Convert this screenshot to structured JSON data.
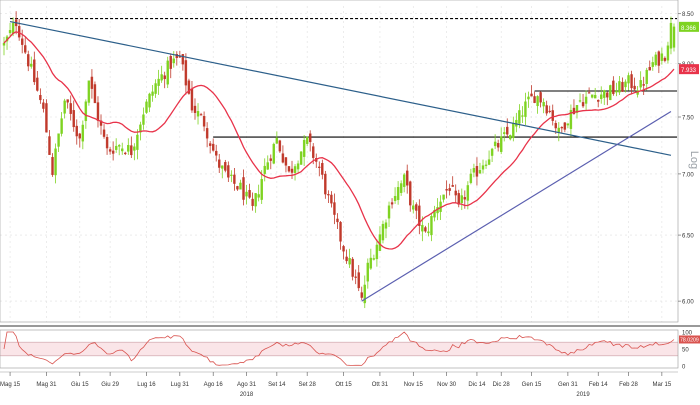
{
  "chart_data": {
    "type": "candlestick",
    "scale": "log",
    "ylim": [
      5.85,
      8.58
    ],
    "y_ticks": [
      6.0,
      6.5,
      7.0,
      7.5,
      8.0,
      8.5
    ],
    "y_tick_labels": [
      "6.00",
      "6.50",
      "7.00",
      "7.50",
      "8.00",
      "8.50"
    ],
    "x_ticks": [
      {
        "label": "Mag 15",
        "idx": 2
      },
      {
        "label": "Mag 31",
        "idx": 14
      },
      {
        "label": "Giu 15",
        "idx": 25
      },
      {
        "label": "Giu 29",
        "idx": 35
      },
      {
        "label": "Lug 16",
        "idx": 47
      },
      {
        "label": "Lug 31",
        "idx": 58
      },
      {
        "label": "Ago 16",
        "idx": 69
      },
      {
        "label": "Ago 31",
        "idx": 80
      },
      {
        "label": "Set 14",
        "idx": 90
      },
      {
        "label": "Set 28",
        "idx": 100
      },
      {
        "label": "Ott 15",
        "idx": 112
      },
      {
        "label": "Ott 31",
        "idx": 124
      },
      {
        "label": "Nov 15",
        "idx": 135
      },
      {
        "label": "Nov 30",
        "idx": 146
      },
      {
        "label": "Dic 14",
        "idx": 156
      },
      {
        "label": "Dic 28",
        "idx": 164
      },
      {
        "label": "Gen 15",
        "idx": 174
      },
      {
        "label": "Gen 31",
        "idx": 186
      },
      {
        "label": "Feb 14",
        "idx": 196
      },
      {
        "label": "Feb 28",
        "idx": 206
      },
      {
        "label": "Mar 15",
        "idx": 217
      }
    ],
    "year_labels": [
      {
        "label": "2018",
        "idx": 80
      },
      {
        "label": "2019",
        "idx": 191
      }
    ],
    "last_price_label": "8.366",
    "ma_label": "7.933",
    "price_waypoints": [
      [
        0,
        8.18
      ],
      [
        4,
        8.42
      ],
      [
        6,
        8.22
      ],
      [
        9,
        7.93
      ],
      [
        13,
        7.55
      ],
      [
        16,
        7.02
      ],
      [
        20,
        7.65
      ],
      [
        25,
        7.3
      ],
      [
        28,
        7.85
      ],
      [
        31,
        7.5
      ],
      [
        34,
        7.2
      ],
      [
        38,
        7.25
      ],
      [
        42,
        7.2
      ],
      [
        46,
        7.55
      ],
      [
        50,
        7.8
      ],
      [
        55,
        8.0
      ],
      [
        58,
        8.05
      ],
      [
        62,
        7.6
      ],
      [
        66,
        7.45
      ],
      [
        70,
        7.12
      ],
      [
        74,
        6.95
      ],
      [
        78,
        6.88
      ],
      [
        82,
        6.7
      ],
      [
        86,
        7.05
      ],
      [
        90,
        7.3
      ],
      [
        94,
        7.0
      ],
      [
        98,
        7.2
      ],
      [
        100,
        7.28
      ],
      [
        104,
        7.05
      ],
      [
        108,
        6.7
      ],
      [
        112,
        6.4
      ],
      [
        116,
        6.15
      ],
      [
        118,
        6.0
      ],
      [
        120,
        6.25
      ],
      [
        124,
        6.5
      ],
      [
        128,
        6.8
      ],
      [
        132,
        6.95
      ],
      [
        135,
        6.7
      ],
      [
        139,
        6.5
      ],
      [
        143,
        6.75
      ],
      [
        147,
        6.9
      ],
      [
        150,
        6.7
      ],
      [
        154,
        6.95
      ],
      [
        158,
        7.1
      ],
      [
        163,
        7.25
      ],
      [
        168,
        7.4
      ],
      [
        172,
        7.6
      ],
      [
        175,
        7.7
      ],
      [
        178,
        7.65
      ],
      [
        181,
        7.5
      ],
      [
        183,
        7.35
      ],
      [
        186,
        7.5
      ],
      [
        190,
        7.65
      ],
      [
        194,
        7.7
      ],
      [
        198,
        7.72
      ],
      [
        202,
        7.75
      ],
      [
        206,
        7.82
      ],
      [
        210,
        7.78
      ],
      [
        214,
        8.0
      ],
      [
        218,
        8.1
      ],
      [
        220,
        8.366
      ]
    ],
    "series": [
      {
        "name": "Price",
        "kind": "candles"
      },
      {
        "name": "MA",
        "kind": "line",
        "period": 20
      }
    ],
    "trendlines": [
      {
        "from": {
          "idx": 2,
          "price": 8.42
        },
        "to": {
          "idx": 220,
          "price": 7.16
        }
      },
      {
        "from": {
          "idx": 118,
          "price": 6.0
        },
        "to": {
          "idx": 220,
          "price": 7.55
        }
      }
    ],
    "horizontal_levels": [
      {
        "from_idx": 2,
        "to_idx": 222,
        "price": 8.45,
        "style": "dashed"
      },
      {
        "from_idx": 69,
        "to_idx": 222,
        "price": 7.32,
        "style": "solid"
      },
      {
        "from_idx": 175,
        "to_idx": 222,
        "price": 7.74,
        "style": "solid"
      }
    ],
    "oscillator": {
      "ticks": [
        100,
        50,
        0
      ],
      "tick_labels": [
        "100",
        "50",
        "0"
      ],
      "levels": [
        70,
        30
      ],
      "current_label": "78.0209",
      "end_value": 78
    },
    "colors": {
      "up_candle": "#7ed321",
      "down_candle": "#c0392b",
      "ma_line": "#e8334a",
      "trend_down": "#2c5f8a",
      "trend_up": "#5b5fb0",
      "level_line": "#000000",
      "osc_band": "#f5c6cb",
      "osc_line": "#d9534f",
      "price_tag": "#7ed321",
      "ma_tag": "#e8334a",
      "grid": "#e0e0e0",
      "axis_text": "#333333"
    }
  }
}
